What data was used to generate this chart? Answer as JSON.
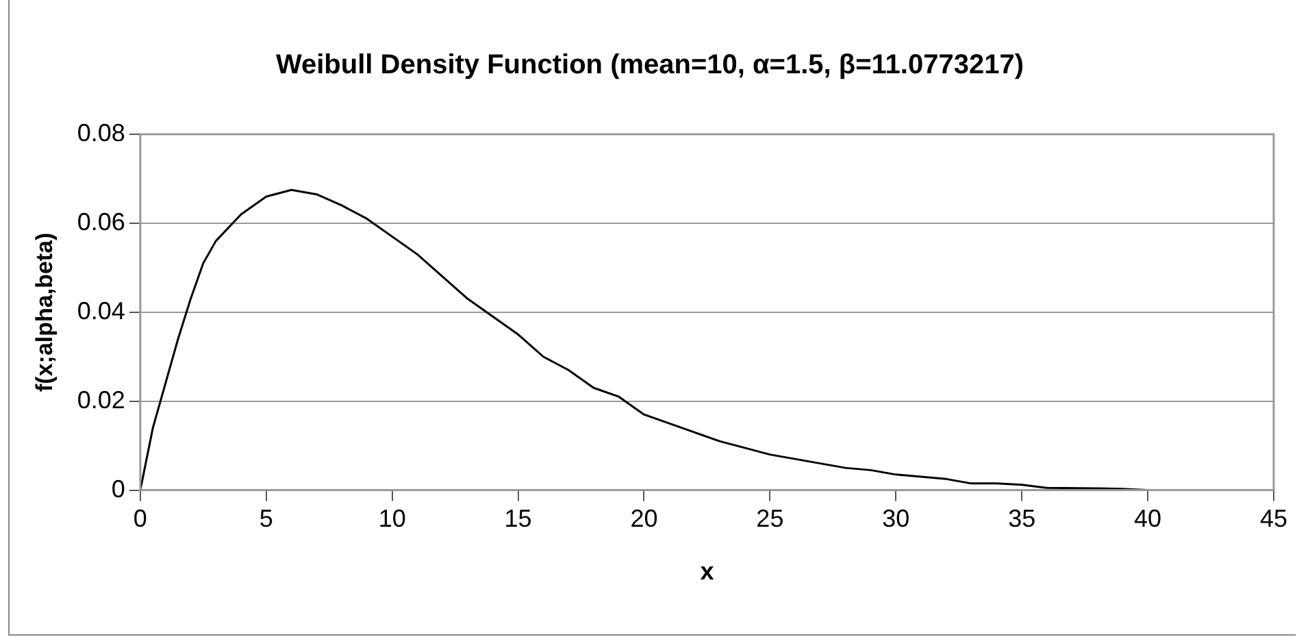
{
  "chart_data": {
    "type": "line",
    "title": "Weibull Density Function (mean=10, α=1.5, β=11.0773217)",
    "xlabel": "x",
    "ylabel": "f(x;alpha,beta)",
    "x": [
      0,
      0.5,
      1,
      1.5,
      2,
      2.5,
      3,
      4,
      5,
      6,
      7,
      8,
      9,
      10,
      11,
      12,
      13,
      14,
      15,
      16,
      17,
      18,
      19,
      20,
      21,
      22,
      23,
      24,
      25,
      26,
      27,
      28,
      29,
      30,
      31,
      32,
      33,
      34,
      35,
      36,
      38,
      39,
      40
    ],
    "series": [
      {
        "color": "#000000",
        "values": [
          0,
          0.014,
          0.024,
          0.034,
          0.043,
          0.051,
          0.056,
          0.062,
          0.066,
          0.0675,
          0.0665,
          0.064,
          0.061,
          0.057,
          0.053,
          0.048,
          0.043,
          0.039,
          0.035,
          0.03,
          0.027,
          0.023,
          0.021,
          0.017,
          0.015,
          0.013,
          0.011,
          0.0095,
          0.008,
          0.007,
          0.006,
          0.005,
          0.0045,
          0.0035,
          0.003,
          0.0025,
          0.0015,
          0.0015,
          0.0012,
          0.0005,
          0.0004,
          0.0003,
          0
        ]
      }
    ],
    "xlim": [
      0,
      45
    ],
    "xticks": [
      0,
      5,
      10,
      15,
      20,
      25,
      30,
      35,
      40,
      45
    ],
    "ylim": [
      0,
      0.08
    ],
    "yticks": [
      0,
      0.02,
      0.04,
      0.06,
      0.08
    ],
    "grid": "y",
    "legend": false,
    "marker": "none",
    "line_style": "solid"
  }
}
